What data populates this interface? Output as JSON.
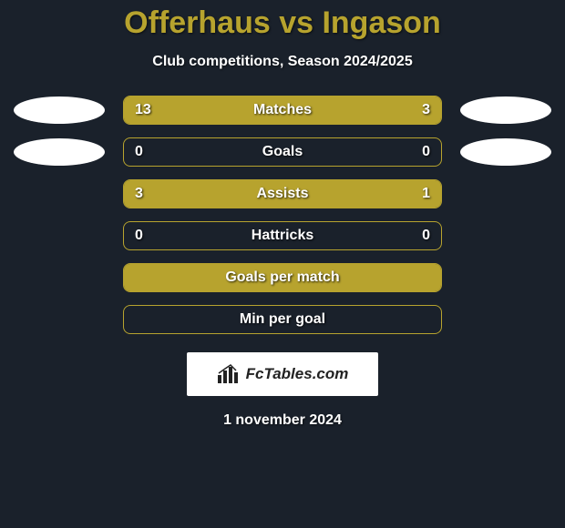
{
  "title": "Offerhaus vs Ingason",
  "subtitle": "Club competitions, Season 2024/2025",
  "footer_date": "1 november 2024",
  "badge": {
    "text": "FcTables.com",
    "icon_name": "bar-chart-icon"
  },
  "colors": {
    "background": "#1a212b",
    "accent": "#b7a32e",
    "text": "#ffffff",
    "ellipse": "#ffffff",
    "badge_bg": "#ffffff",
    "badge_text": "#222222"
  },
  "side_ellipses": {
    "left_count": 2,
    "right_count": 2,
    "color": "#ffffff"
  },
  "stats": [
    {
      "label": "Matches",
      "left_value": "13",
      "right_value": "3",
      "left_fill_pct": 78,
      "right_fill_pct": 22,
      "show_values": true,
      "ellipse_row": true
    },
    {
      "label": "Goals",
      "left_value": "0",
      "right_value": "0",
      "left_fill_pct": 0,
      "right_fill_pct": 0,
      "show_values": true,
      "ellipse_row": true
    },
    {
      "label": "Assists",
      "left_value": "3",
      "right_value": "1",
      "left_fill_pct": 74,
      "right_fill_pct": 26,
      "show_values": true,
      "ellipse_row": false
    },
    {
      "label": "Hattricks",
      "left_value": "0",
      "right_value": "0",
      "left_fill_pct": 0,
      "right_fill_pct": 0,
      "show_values": true,
      "ellipse_row": false
    },
    {
      "label": "Goals per match",
      "left_value": "",
      "right_value": "",
      "left_fill_pct": 50,
      "right_fill_pct": 50,
      "show_values": false,
      "ellipse_row": false
    },
    {
      "label": "Min per goal",
      "left_value": "",
      "right_value": "",
      "left_fill_pct": 0,
      "right_fill_pct": 0,
      "show_values": false,
      "ellipse_row": false
    }
  ]
}
